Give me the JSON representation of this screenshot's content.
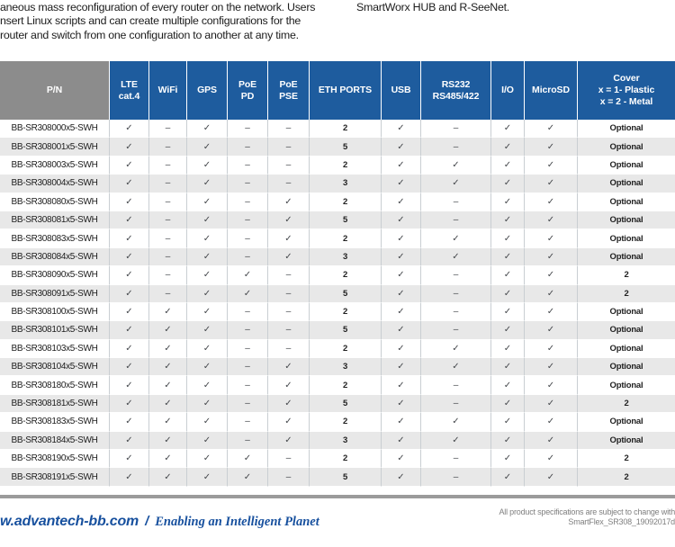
{
  "intro": {
    "left_lines": [
      "aneous mass reconfiguration of every router on the network. Users",
      "nsert Linux scripts and can create multiple configurations for the",
      "router and switch from one configuration to another at any time."
    ],
    "right_line": "SmartWorx HUB and R-SeeNet."
  },
  "table": {
    "columns": [
      "P/N",
      "LTE\ncat.4",
      "WiFi",
      "GPS",
      "PoE\nPD",
      "PoE\nPSE",
      "ETH PORTS",
      "USB",
      "RS232\nRS485/422",
      "I/O",
      "MicroSD",
      "Cover\nx = 1- Plastic\nx = 2 - Metal"
    ],
    "rows": [
      {
        "pn": "BB-SR308000x5-SWH",
        "values": [
          "✓",
          "–",
          "✓",
          "–",
          "–",
          "2",
          "✓",
          "–",
          "✓",
          "✓",
          "Optional"
        ]
      },
      {
        "pn": "BB-SR308001x5-SWH",
        "values": [
          "✓",
          "–",
          "✓",
          "–",
          "–",
          "5",
          "✓",
          "–",
          "✓",
          "✓",
          "Optional"
        ]
      },
      {
        "pn": "BB-SR308003x5-SWH",
        "values": [
          "✓",
          "–",
          "✓",
          "–",
          "–",
          "2",
          "✓",
          "✓",
          "✓",
          "✓",
          "Optional"
        ]
      },
      {
        "pn": "BB-SR308004x5-SWH",
        "values": [
          "✓",
          "–",
          "✓",
          "–",
          "–",
          "3",
          "✓",
          "✓",
          "✓",
          "✓",
          "Optional"
        ]
      },
      {
        "pn": "BB-SR308080x5-SWH",
        "values": [
          "✓",
          "–",
          "✓",
          "–",
          "✓",
          "2",
          "✓",
          "–",
          "✓",
          "✓",
          "Optional"
        ]
      },
      {
        "pn": "BB-SR308081x5-SWH",
        "values": [
          "✓",
          "–",
          "✓",
          "–",
          "✓",
          "5",
          "✓",
          "–",
          "✓",
          "✓",
          "Optional"
        ]
      },
      {
        "pn": "BB-SR308083x5-SWH",
        "values": [
          "✓",
          "–",
          "✓",
          "–",
          "✓",
          "2",
          "✓",
          "✓",
          "✓",
          "✓",
          "Optional"
        ]
      },
      {
        "pn": "BB-SR308084x5-SWH",
        "values": [
          "✓",
          "–",
          "✓",
          "–",
          "✓",
          "3",
          "✓",
          "✓",
          "✓",
          "✓",
          "Optional"
        ]
      },
      {
        "pn": "BB-SR308090x5-SWH",
        "values": [
          "✓",
          "–",
          "✓",
          "✓",
          "–",
          "2",
          "✓",
          "–",
          "✓",
          "✓",
          "2"
        ]
      },
      {
        "pn": "BB-SR308091x5-SWH",
        "values": [
          "✓",
          "–",
          "✓",
          "✓",
          "–",
          "5",
          "✓",
          "–",
          "✓",
          "✓",
          "2"
        ]
      },
      {
        "pn": "BB-SR308100x5-SWH",
        "values": [
          "✓",
          "✓",
          "✓",
          "–",
          "–",
          "2",
          "✓",
          "–",
          "✓",
          "✓",
          "Optional"
        ]
      },
      {
        "pn": "BB-SR308101x5-SWH",
        "values": [
          "✓",
          "✓",
          "✓",
          "–",
          "–",
          "5",
          "✓",
          "–",
          "✓",
          "✓",
          "Optional"
        ]
      },
      {
        "pn": "BB-SR308103x5-SWH",
        "values": [
          "✓",
          "✓",
          "✓",
          "–",
          "–",
          "2",
          "✓",
          "✓",
          "✓",
          "✓",
          "Optional"
        ]
      },
      {
        "pn": "BB-SR308104x5-SWH",
        "values": [
          "✓",
          "✓",
          "✓",
          "–",
          "✓",
          "3",
          "✓",
          "✓",
          "✓",
          "✓",
          "Optional"
        ]
      },
      {
        "pn": "BB-SR308180x5-SWH",
        "values": [
          "✓",
          "✓",
          "✓",
          "–",
          "✓",
          "2",
          "✓",
          "–",
          "✓",
          "✓",
          "Optional"
        ]
      },
      {
        "pn": "BB-SR308181x5-SWH",
        "values": [
          "✓",
          "✓",
          "✓",
          "–",
          "✓",
          "5",
          "✓",
          "–",
          "✓",
          "✓",
          "2"
        ]
      },
      {
        "pn": "BB-SR308183x5-SWH",
        "values": [
          "✓",
          "✓",
          "✓",
          "–",
          "✓",
          "2",
          "✓",
          "✓",
          "✓",
          "✓",
          "Optional"
        ]
      },
      {
        "pn": "BB-SR308184x5-SWH",
        "values": [
          "✓",
          "✓",
          "✓",
          "–",
          "✓",
          "3",
          "✓",
          "✓",
          "✓",
          "✓",
          "Optional"
        ]
      },
      {
        "pn": "BB-SR308190x5-SWH",
        "values": [
          "✓",
          "✓",
          "✓",
          "✓",
          "–",
          "2",
          "✓",
          "–",
          "✓",
          "✓",
          "2"
        ]
      },
      {
        "pn": "BB-SR308191x5-SWH",
        "values": [
          "✓",
          "✓",
          "✓",
          "✓",
          "–",
          "5",
          "✓",
          "–",
          "✓",
          "✓",
          "2"
        ]
      }
    ]
  },
  "footer": {
    "website": "w.advantech-bb.com",
    "separator": "/",
    "tagline": "Enabling an Intelligent Planet",
    "note_line1": "All product specifications are subject to change with",
    "note_line2": "SmartFlex_SR308_19092017d"
  },
  "colors": {
    "header_blue": "#1E5C9E",
    "header_gray": "#8C8C8C",
    "row_alt_gray": "#E8E8E8",
    "footer_blue": "#17509E",
    "separator_bar_gray": "#9B9B9B"
  }
}
